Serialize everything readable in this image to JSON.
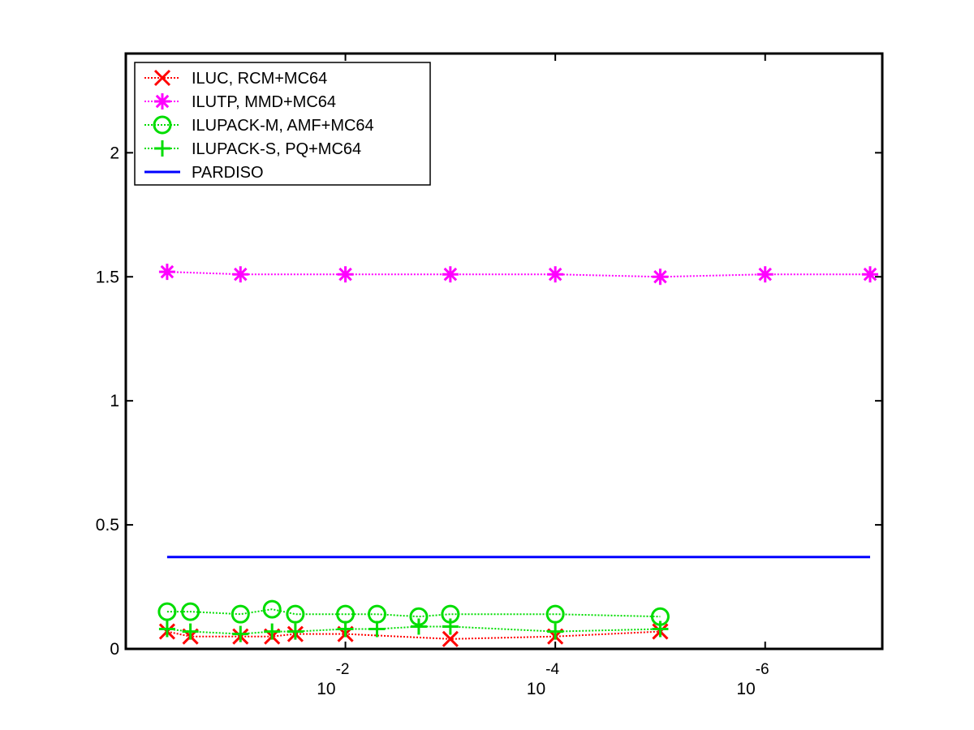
{
  "chart_data": {
    "type": "line",
    "title": "",
    "xlabel": "",
    "ylabel": "",
    "x_scale": "log-reversed",
    "xlim": [
      1,
      1e-07
    ],
    "ylim": [
      0,
      2.4
    ],
    "y_ticks": [
      {
        "value": 0,
        "label": "0"
      },
      {
        "value": 0.5,
        "label": "0.5"
      },
      {
        "value": 1,
        "label": "1"
      },
      {
        "value": 1.5,
        "label": "1.5"
      },
      {
        "value": 2,
        "label": "2"
      }
    ],
    "x_ticks": [
      {
        "value": 0.01,
        "base": "10",
        "exponent": "-2"
      },
      {
        "value": 0.0001,
        "base": "10",
        "exponent": "-4"
      },
      {
        "value": 1e-06,
        "base": "10",
        "exponent": "-6"
      }
    ],
    "grid": false,
    "legend_position": "top-left",
    "series": [
      {
        "name": "ILUC, RCM+MC64",
        "color": "#ff0000",
        "line_style": "dotted",
        "marker": "x",
        "x": [
          0.5,
          0.3,
          0.1,
          0.05,
          0.03,
          0.01,
          0.001,
          0.0001,
          1e-05
        ],
        "y": [
          0.07,
          0.05,
          0.05,
          0.05,
          0.06,
          0.06,
          0.04,
          0.05,
          0.07
        ]
      },
      {
        "name": "ILUTP, MMD+MC64",
        "color": "#ff00ff",
        "line_style": "dotted",
        "marker": "star",
        "x": [
          0.5,
          0.1,
          0.01,
          0.001,
          0.0001,
          1e-05,
          1e-06,
          1e-07
        ],
        "y": [
          1.52,
          1.51,
          1.51,
          1.51,
          1.51,
          1.5,
          1.51,
          1.51
        ]
      },
      {
        "name": "ILUPACK-M, AMF+MC64",
        "color": "#00dd00",
        "line_style": "dotted",
        "marker": "circle",
        "x": [
          0.5,
          0.3,
          0.1,
          0.05,
          0.03,
          0.01,
          0.005,
          0.002,
          0.001,
          0.0001,
          1e-05
        ],
        "y": [
          0.15,
          0.15,
          0.14,
          0.16,
          0.14,
          0.14,
          0.14,
          0.13,
          0.14,
          0.14,
          0.13
        ]
      },
      {
        "name": "ILUPACK-S, PQ+MC64",
        "color": "#00dd00",
        "line_style": "dotted",
        "marker": "plus",
        "x": [
          0.5,
          0.3,
          0.1,
          0.05,
          0.03,
          0.01,
          0.005,
          0.002,
          0.001,
          0.0001,
          1e-05
        ],
        "y": [
          0.08,
          0.07,
          0.06,
          0.07,
          0.07,
          0.08,
          0.08,
          0.09,
          0.09,
          0.07,
          0.08
        ]
      },
      {
        "name": "PARDISO",
        "color": "#0000ff",
        "line_style": "solid",
        "marker": "none",
        "x": [
          0.5,
          1e-07
        ],
        "y": [
          0.37,
          0.37
        ]
      }
    ]
  }
}
